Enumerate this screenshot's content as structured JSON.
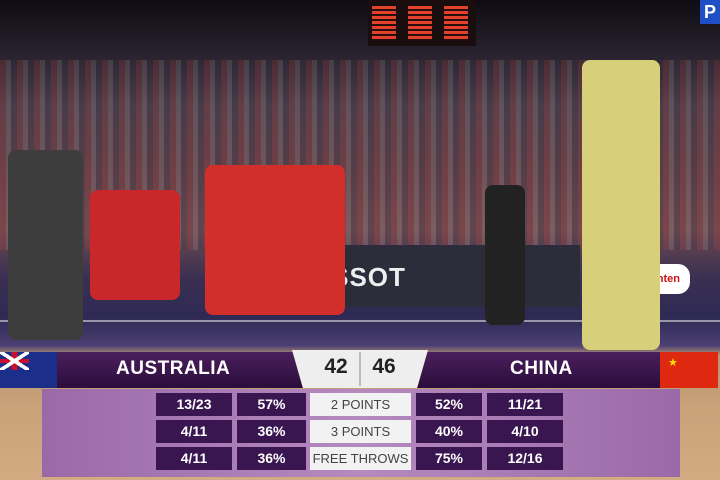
{
  "broadcast": {
    "channel_logo": "P",
    "sponsor_logos": [
      "TISSOT",
      "Ganten"
    ]
  },
  "scoreboard": {
    "home": {
      "name": "AUSTRALIA",
      "score": "42",
      "flag": "australia-flag"
    },
    "away": {
      "name": "CHINA",
      "score": "46",
      "flag": "china-flag"
    }
  },
  "stats": [
    {
      "label": "2 POINTS",
      "home_made": "13/23",
      "home_pct": "57%",
      "away_pct": "52%",
      "away_made": "11/21"
    },
    {
      "label": "3 POINTS",
      "home_made": "4/11",
      "home_pct": "36%",
      "away_pct": "40%",
      "away_made": "4/10"
    },
    {
      "label": "FREE THROWS",
      "home_made": "4/11",
      "home_pct": "36%",
      "away_pct": "75%",
      "away_made": "12/16"
    }
  ],
  "colors": {
    "bar": "#2b0d3c",
    "panel": "#b58abf",
    "cell": "#3a1650",
    "label_bg": "#f2f2f2"
  }
}
